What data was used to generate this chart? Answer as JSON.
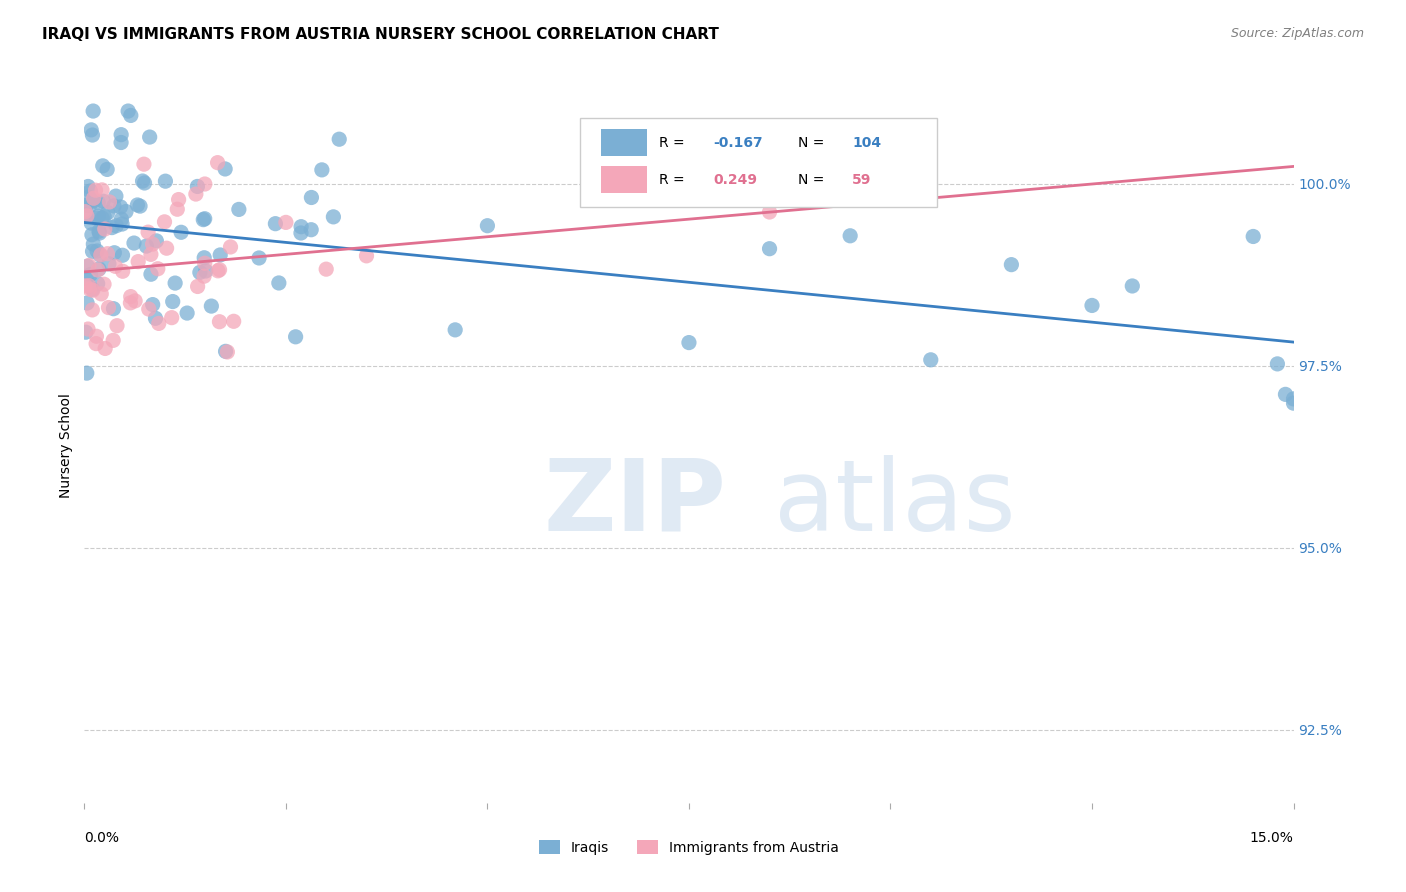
{
  "title": "IRAQI VS IMMIGRANTS FROM AUSTRIA NURSERY SCHOOL CORRELATION CHART",
  "source": "Source: ZipAtlas.com",
  "ylabel": "Nursery School",
  "yticks": [
    "92.5%",
    "95.0%",
    "97.5%",
    "100.0%"
  ],
  "ytick_vals": [
    92.5,
    95.0,
    97.5,
    100.0
  ],
  "xlim": [
    0.0,
    15.0
  ],
  "ylim": [
    91.5,
    101.3
  ],
  "legend_r_iraqis": "-0.167",
  "legend_n_iraqis": "104",
  "legend_r_austria": "0.249",
  "legend_n_austria": "59",
  "iraqis_color": "#7bafd4",
  "austria_color": "#f4a7b9",
  "trendline_iraqis_color": "#3a7fc1",
  "trendline_austria_color": "#e07090",
  "background_color": "#ffffff",
  "title_fontsize": 11,
  "source_fontsize": 9
}
